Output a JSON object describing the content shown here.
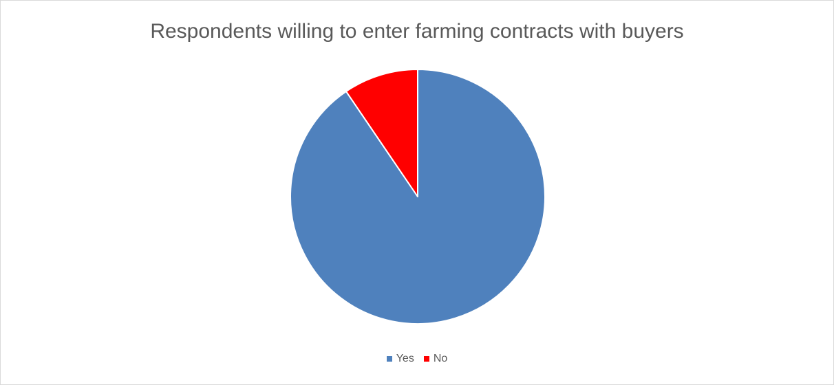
{
  "chart_data": {
    "type": "pie",
    "title": "Respondents willing to enter farming contracts with buyers",
    "categories": [
      "Yes",
      "No"
    ],
    "values": [
      90.5,
      9.5
    ],
    "colors": [
      "#4F81BD",
      "#FF0000"
    ],
    "start_angle_deg": 0,
    "direction": "clockwise",
    "legend_position": "bottom"
  }
}
